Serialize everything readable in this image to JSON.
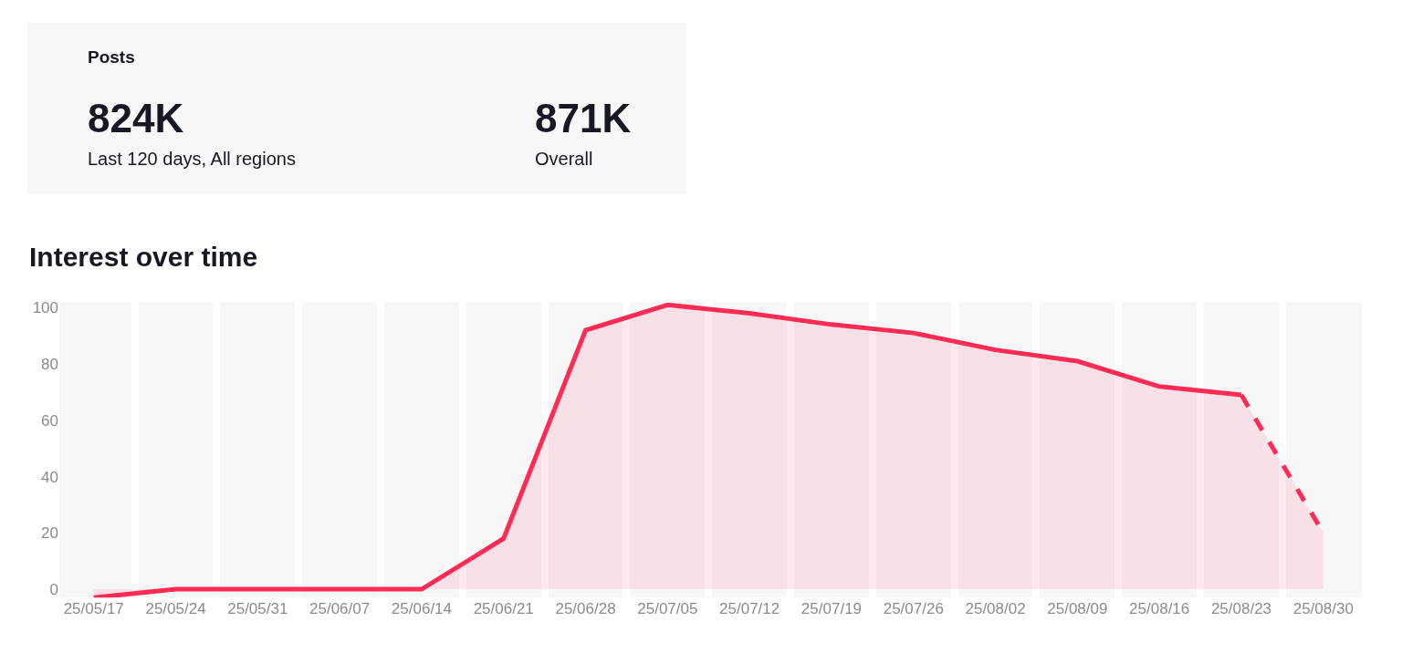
{
  "chart_data": [
    {
      "type": "other",
      "title": "Posts",
      "annotations": [
        "824K",
        "Last 120 days, All regions",
        "871K",
        "Overall"
      ]
    },
    {
      "type": "area",
      "title": "Interest over time",
      "categories": [
        "25/05/17",
        "25/05/24",
        "25/05/31",
        "25/06/07",
        "25/06/14",
        "25/06/21",
        "25/06/28",
        "25/07/05",
        "25/07/12",
        "25/07/19",
        "25/07/26",
        "25/08/02",
        "25/08/09",
        "25/08/16",
        "25/08/23",
        "25/08/30"
      ],
      "series": [
        {
          "color": "#fe2c55",
          "line_style": "solid",
          "values": [
            -3,
            0,
            0,
            0,
            0,
            18,
            92,
            101,
            98,
            94,
            91,
            85,
            81,
            72,
            69,
            null
          ]
        },
        {
          "color": "#fe2c55",
          "line_style": "dashed",
          "values": [
            null,
            null,
            null,
            null,
            null,
            null,
            null,
            null,
            null,
            null,
            null,
            null,
            null,
            null,
            69,
            20
          ]
        }
      ],
      "ylim": [
        -3,
        102
      ],
      "yticks": [
        0,
        20,
        40,
        60,
        80,
        100
      ],
      "grid": "x"
    }
  ]
}
